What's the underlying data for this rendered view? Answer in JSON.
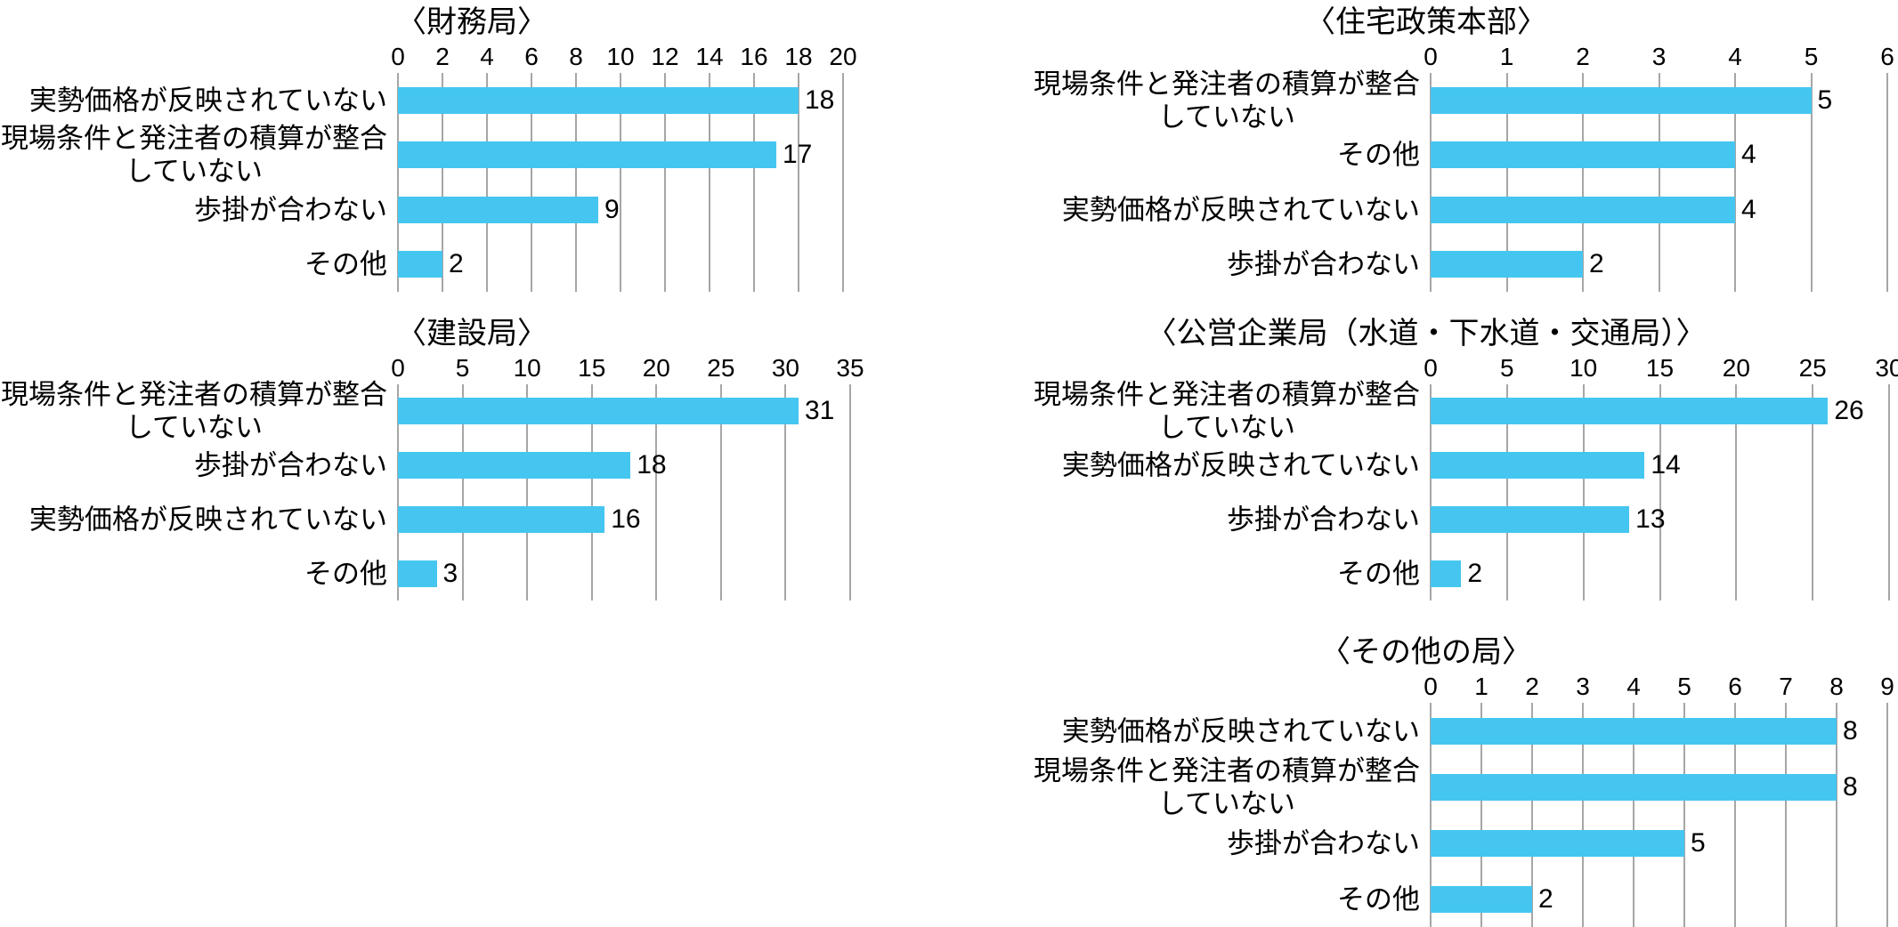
{
  "meta": {
    "background_color": "#ffffff",
    "bar_color": "#45C6F0",
    "gridline_color": "#A6A6A6",
    "text_color": "#000000"
  },
  "chart_data": [
    {
      "id": "finance-bureau",
      "type": "bar",
      "orientation": "horizontal",
      "title": "〈財務局〉",
      "axis_position": "top",
      "grid": true,
      "xlim": [
        0,
        20
      ],
      "xticks": [
        0,
        2,
        4,
        6,
        8,
        10,
        12,
        14,
        16,
        18,
        20
      ],
      "categories": [
        "実勢価格が反映されていない",
        "現場条件と発注者の積算が整合\nしていない",
        "歩掛が合わない",
        "その他"
      ],
      "values": [
        18,
        17,
        9,
        2
      ]
    },
    {
      "id": "housing-policy-hq",
      "type": "bar",
      "orientation": "horizontal",
      "title": "〈住宅政策本部〉",
      "axis_position": "top",
      "grid": true,
      "xlim": [
        0,
        6
      ],
      "xticks": [
        0,
        1,
        2,
        3,
        4,
        5,
        6
      ],
      "categories": [
        "現場条件と発注者の積算が整合\nしていない",
        "その他",
        "実勢価格が反映されていない",
        "歩掛が合わない"
      ],
      "values": [
        5,
        4,
        4,
        2
      ]
    },
    {
      "id": "construction-bureau",
      "type": "bar",
      "orientation": "horizontal",
      "title": "〈建設局〉",
      "axis_position": "top",
      "grid": true,
      "xlim": [
        0,
        35
      ],
      "xticks": [
        0,
        5,
        10,
        15,
        20,
        25,
        30,
        35
      ],
      "categories": [
        "現場条件と発注者の積算が整合\nしていない",
        "歩掛が合わない",
        "実勢価格が反映されていない",
        "その他"
      ],
      "values": [
        31,
        18,
        16,
        3
      ]
    },
    {
      "id": "public-enterprise-bureau",
      "type": "bar",
      "orientation": "horizontal",
      "title": "〈公営企業局（水道・下水道・交通局）〉",
      "axis_position": "top",
      "grid": true,
      "xlim": [
        0,
        30
      ],
      "xticks": [
        0,
        5,
        10,
        15,
        20,
        25,
        30
      ],
      "categories": [
        "現場条件と発注者の積算が整合\nしていない",
        "実勢価格が反映されていない",
        "歩掛が合わない",
        "その他"
      ],
      "values": [
        26,
        14,
        13,
        2
      ]
    },
    {
      "id": "other-bureaus",
      "type": "bar",
      "orientation": "horizontal",
      "title": "〈その他の局〉",
      "axis_position": "top",
      "grid": true,
      "xlim": [
        0,
        9
      ],
      "xticks": [
        0,
        1,
        2,
        3,
        4,
        5,
        6,
        7,
        8,
        9
      ],
      "categories": [
        "実勢価格が反映されていない",
        "現場条件と発注者の積算が整合\nしていない",
        "歩掛が合わない",
        "その他"
      ],
      "values": [
        8,
        8,
        5,
        2
      ]
    }
  ]
}
